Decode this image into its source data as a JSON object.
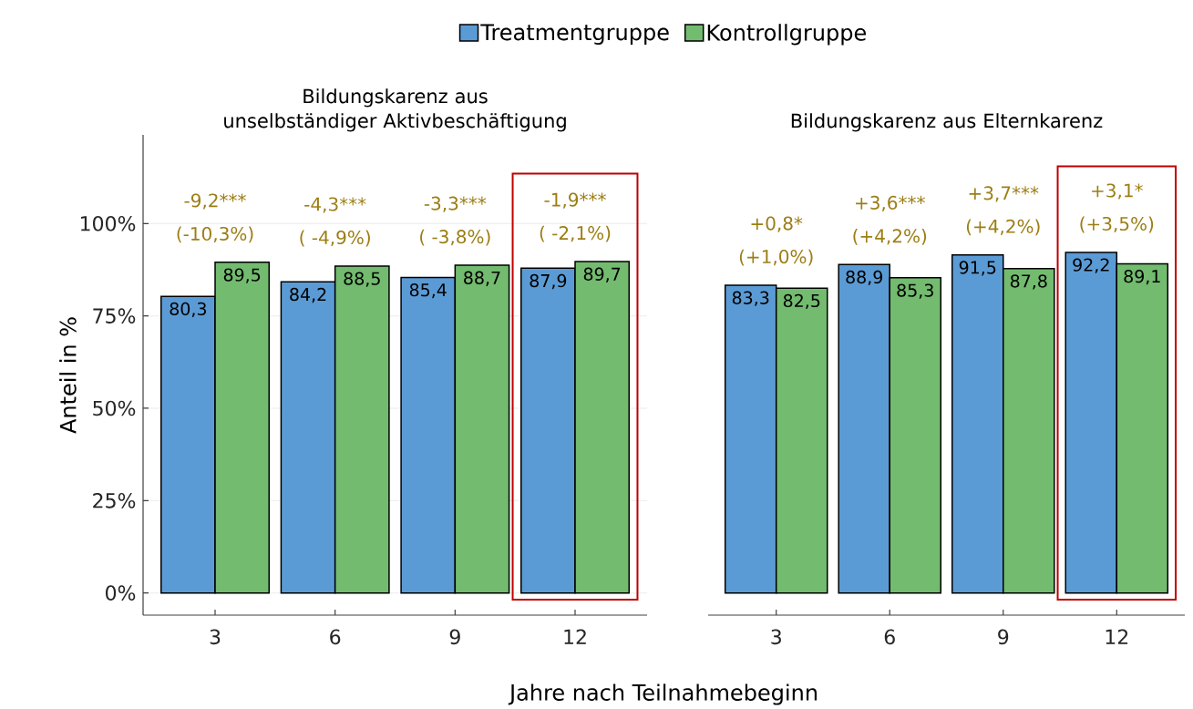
{
  "chart_data": [
    {
      "type": "bar",
      "title": "Bildungskarenz aus unselbständiger Aktivbeschäftigung",
      "xlabel": "Jahre nach Teilnahmebeginn",
      "ylabel": "Anteil in %",
      "categories": [
        "3",
        "6",
        "9",
        "12"
      ],
      "series": [
        {
          "name": "Treatmentgruppe",
          "color": "#5b9bd5",
          "values": [
            80.3,
            84.2,
            85.4,
            87.9
          ],
          "value_labels": [
            "80,3",
            "84,2",
            "85,4",
            "87,9"
          ]
        },
        {
          "name": "Kontrollgruppe",
          "color": "#73bb6f",
          "values": [
            89.5,
            88.5,
            88.7,
            89.7
          ],
          "value_labels": [
            "89,5",
            "88,5",
            "88,7",
            "89,7"
          ]
        }
      ],
      "ylim": [
        -6,
        124
      ],
      "yticks": [
        {
          "value": 0,
          "label": "0%"
        },
        {
          "value": 25,
          "label": "25%"
        },
        {
          "value": 50,
          "label": "50%"
        },
        {
          "value": 75,
          "label": "75%"
        },
        {
          "value": 100,
          "label": "100%"
        }
      ],
      "grid": "y",
      "legend": "top",
      "annotations": [
        "-9,2***",
        "(-10,3%)",
        "-4,3***",
        "( -4,9%)",
        "-3,3***",
        "( -3,8%)",
        "-1,9***",
        "( -2,1%)"
      ]
    },
    {
      "type": "bar",
      "title": "Bildungskarenz aus Elternkarenz",
      "categories": [
        "3",
        "6",
        "9",
        "12"
      ],
      "series": [
        {
          "color": "#5b9bd5",
          "values": [
            83.3,
            88.9,
            91.5,
            92.2
          ],
          "value_labels": [
            "83,3",
            "88,9",
            "91,5",
            "92,2"
          ]
        },
        {
          "color": "#73bb6f",
          "values": [
            82.5,
            85.3,
            87.8,
            89.1
          ],
          "value_labels": [
            "82,5",
            "85,3",
            "87,8",
            "89,1"
          ]
        }
      ],
      "grid": "y",
      "tick_labels": "x",
      "annotations": [
        "+0,8*",
        "(+1,0%)",
        "+3,6***",
        "(+4,2%)",
        "+3,7***",
        "(+4,2%)",
        "+3,1*",
        "(+3,5%)"
      ]
    }
  ]
}
